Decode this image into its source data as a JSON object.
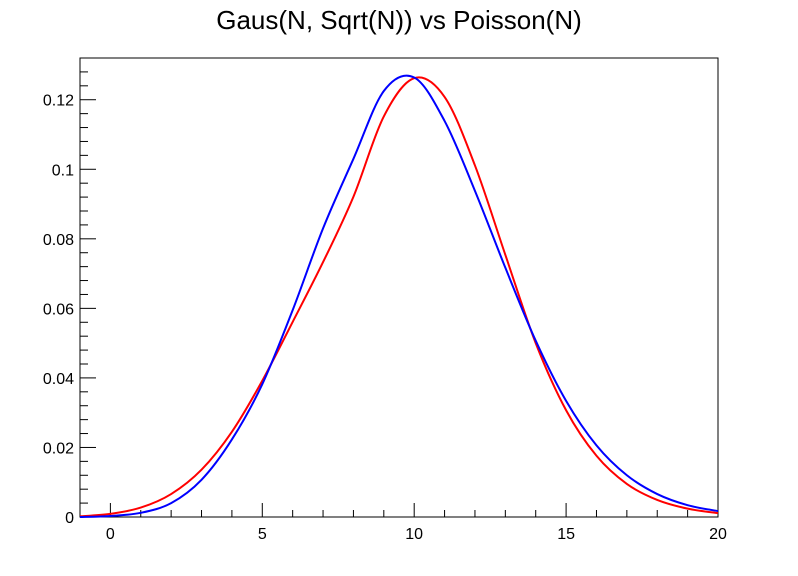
{
  "chart_data": {
    "type": "line",
    "title": "Gaus(N, Sqrt(N)) vs Poisson(N)",
    "xlabel": "",
    "ylabel": "",
    "xlim": [
      -1,
      20
    ],
    "ylim": [
      0,
      0.132
    ],
    "grid": false,
    "x_ticks": [
      0,
      5,
      10,
      15,
      20
    ],
    "x_tick_labels": [
      "0",
      "5",
      "10",
      "15",
      "20"
    ],
    "y_ticks": [
      0,
      0.02,
      0.04,
      0.06,
      0.08,
      0.1,
      0.12
    ],
    "y_tick_labels": [
      "0",
      "0.02",
      "0.04",
      "0.06",
      "0.08",
      "0.1",
      "0.12"
    ],
    "series": [
      {
        "color": "#ff0000",
        "x": [
          -1,
          0,
          1,
          2,
          3,
          4,
          5,
          6,
          7,
          8,
          9,
          10,
          11,
          12,
          13,
          14,
          15,
          16,
          17,
          18,
          19,
          20
        ],
        "values": [
          0.0002,
          0.0009,
          0.0027,
          0.0066,
          0.0136,
          0.0245,
          0.0392,
          0.0561,
          0.0733,
          0.0921,
          0.1152,
          0.1262,
          0.1208,
          0.1011,
          0.0754,
          0.05,
          0.0307,
          0.0176,
          0.0095,
          0.0049,
          0.0024,
          0.0011
        ]
      },
      {
        "color": "#0000ff",
        "x": [
          -1,
          0,
          1,
          2,
          3,
          4,
          5,
          6,
          7,
          8,
          9,
          10,
          11,
          12,
          13,
          14,
          15,
          16,
          17,
          18,
          19,
          20
        ],
        "values": [
          0.0,
          0.0003,
          0.0012,
          0.004,
          0.0107,
          0.0223,
          0.0382,
          0.0595,
          0.083,
          0.103,
          0.1225,
          0.1264,
          0.1139,
          0.0938,
          0.0717,
          0.0507,
          0.0334,
          0.0206,
          0.012,
          0.0066,
          0.0034,
          0.0017
        ]
      }
    ]
  }
}
